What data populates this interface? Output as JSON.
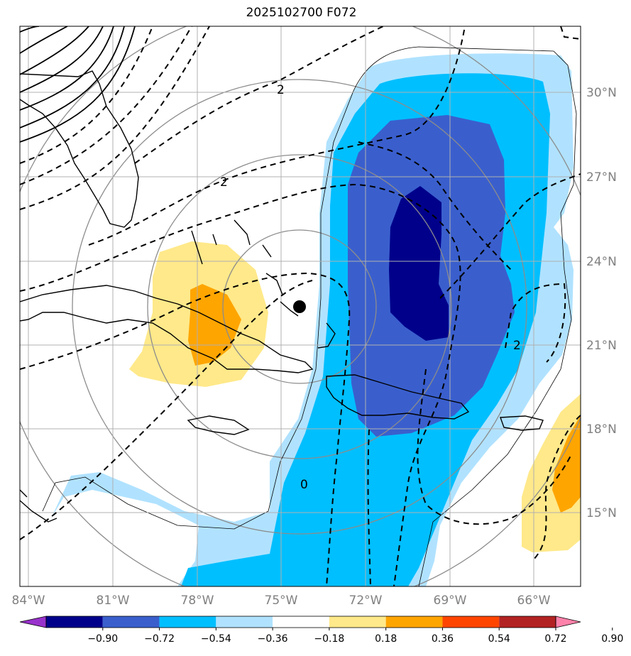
{
  "title": "2025102700 F072",
  "chart_data": {
    "type": "map",
    "title": "2025102700 F072",
    "x_ticks": [
      "84°W",
      "81°W",
      "78°W",
      "75°W",
      "72°W",
      "69°W",
      "66°W"
    ],
    "y_ticks": [
      "30°N",
      "27°N",
      "24°N",
      "21°N",
      "18°N",
      "15°N"
    ],
    "lon_range": [
      -84.3,
      -64.3
    ],
    "lat_range": [
      12.6,
      32.2
    ],
    "grid": true,
    "center_marker": {
      "lon": -74.3,
      "lat": 22.4
    },
    "contour_labels": [
      "2",
      "2",
      "0",
      "2"
    ],
    "colorbar": {
      "orientation": "horizontal",
      "ticks": [
        "−0.90",
        "−0.72",
        "−0.54",
        "−0.36",
        "−0.18",
        "0.18",
        "0.36",
        "0.54",
        "0.72",
        "0.90"
      ],
      "colors": [
        "#9932cc",
        "#00008b",
        "#3a5fcd",
        "#00bfff",
        "#b0e2ff",
        "#ffffff",
        "#ffe98a",
        "#ffa500",
        "#ff4500",
        "#b22222",
        "#ff82ab"
      ]
    }
  }
}
